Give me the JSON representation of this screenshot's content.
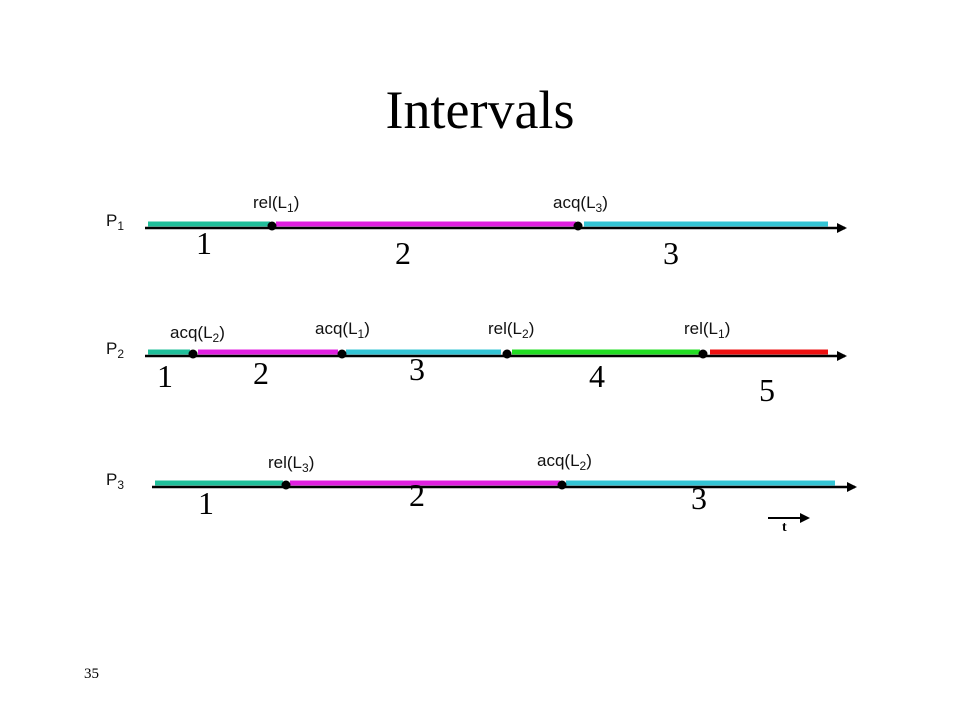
{
  "title": "Intervals",
  "page_number": "35",
  "time_label": "t",
  "processes": [
    {
      "label": {
        "text": "P",
        "sub": "1"
      },
      "segments": [
        "#1fbf9a",
        "#e020e0",
        "#33c4d4"
      ],
      "events": [
        {
          "text": "rel(L",
          "sub": "1",
          "close": ")"
        },
        {
          "text": "acq(L",
          "sub": "3",
          "close": ")"
        }
      ],
      "intervals": [
        "1",
        "2",
        "3"
      ]
    },
    {
      "label": {
        "text": "P",
        "sub": "2"
      },
      "segments": [
        "#1fbf9a",
        "#e020e0",
        "#33c4d4",
        "#22dd22",
        "#ee1111"
      ],
      "events": [
        {
          "text": "acq(L",
          "sub": "2",
          "close": ")"
        },
        {
          "text": "acq(L",
          "sub": "1",
          "close": ")"
        },
        {
          "text": "rel(L",
          "sub": "2",
          "close": ")"
        },
        {
          "text": "rel(L",
          "sub": "1",
          "close": ")"
        }
      ],
      "intervals": [
        "1",
        "2",
        "3",
        "4",
        "5"
      ]
    },
    {
      "label": {
        "text": "P",
        "sub": "3"
      },
      "segments": [
        "#1fbf9a",
        "#e020e0",
        "#33c4d4"
      ],
      "events": [
        {
          "text": "rel(L",
          "sub": "3",
          "close": ")"
        },
        {
          "text": "acq(L",
          "sub": "2",
          "close": ")"
        }
      ],
      "intervals": [
        "1",
        "2",
        "3"
      ]
    }
  ]
}
